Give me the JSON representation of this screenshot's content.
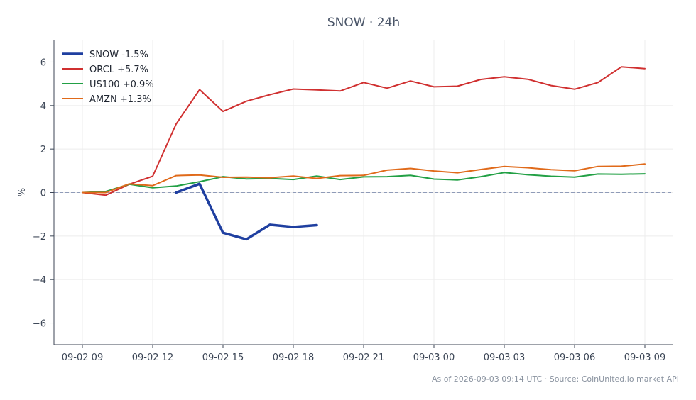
{
  "chart_data": {
    "type": "line",
    "title": "SNOW · 24h",
    "xlabel": "",
    "ylabel": "%",
    "ylim": [
      -7,
      7
    ],
    "yticks": [
      -6,
      -4,
      -2,
      0,
      2,
      4,
      6
    ],
    "ytick_labels": [
      "−6",
      "−4",
      "−2",
      "0",
      "2",
      "4",
      "6"
    ],
    "xtick_labels": [
      "09-02 09",
      "09-02 12",
      "09-02 15",
      "09-02 18",
      "09-02 21",
      "09-03 00",
      "09-03 03",
      "09-03 06",
      "09-03 09"
    ],
    "x": [
      "09-02 09",
      "09-02 10",
      "09-02 11",
      "09-02 12",
      "09-02 13",
      "09-02 14",
      "09-02 15",
      "09-02 16",
      "09-02 17",
      "09-02 18",
      "09-02 19",
      "09-02 20",
      "09-02 21",
      "09-02 22",
      "09-02 23",
      "09-03 00",
      "09-03 01",
      "09-03 02",
      "09-03 03",
      "09-03 04",
      "09-03 05",
      "09-03 06",
      "09-03 07",
      "09-03 08",
      "09-03 09"
    ],
    "grid": true,
    "baseline": 0,
    "legend_position": "top-left",
    "series": [
      {
        "name": "SNOW -1.5%",
        "color": "#1f3fa0",
        "values": [
          null,
          null,
          null,
          null,
          0.0,
          0.4,
          -1.85,
          -2.15,
          -1.48,
          -1.58,
          -1.5,
          null,
          null,
          null,
          null,
          null,
          null,
          null,
          null,
          null,
          null,
          null,
          null,
          null,
          null
        ]
      },
      {
        "name": "ORCL +5.7%",
        "color": "#d03030",
        "values": [
          0.0,
          -0.12,
          0.38,
          0.75,
          3.15,
          4.73,
          3.73,
          4.2,
          4.5,
          4.76,
          4.72,
          4.67,
          5.06,
          4.8,
          5.13,
          4.86,
          4.89,
          5.2,
          5.32,
          5.21,
          4.92,
          4.75,
          5.06,
          5.78,
          5.7
        ]
      },
      {
        "name": "US100 +0.9%",
        "color": "#22a045",
        "values": [
          0.0,
          0.05,
          0.38,
          0.22,
          0.3,
          0.5,
          0.73,
          0.63,
          0.65,
          0.6,
          0.76,
          0.6,
          0.72,
          0.73,
          0.79,
          0.62,
          0.58,
          0.73,
          0.92,
          0.82,
          0.75,
          0.71,
          0.85,
          0.84,
          0.86
        ]
      },
      {
        "name": "AMZN +1.3%",
        "color": "#e06a1a",
        "values": [
          0.0,
          0.0,
          0.4,
          0.32,
          0.78,
          0.81,
          0.7,
          0.71,
          0.68,
          0.76,
          0.65,
          0.78,
          0.79,
          1.03,
          1.11,
          0.99,
          0.91,
          1.06,
          1.2,
          1.14,
          1.05,
          1.0,
          1.2,
          1.21,
          1.31
        ]
      }
    ]
  },
  "footer": {
    "text": "As of 2026-09-03 09:14 UTC · Source: CoinUnited.io market API"
  }
}
